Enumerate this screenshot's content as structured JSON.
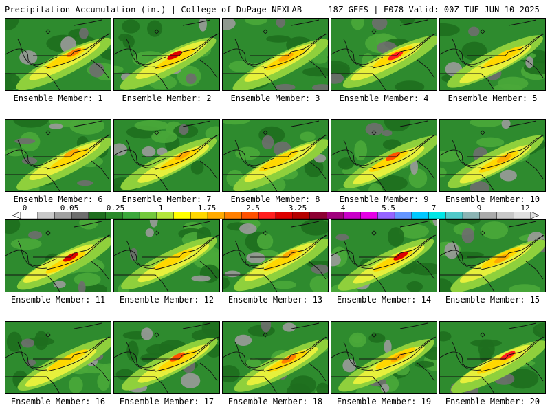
{
  "header": {
    "title_left": "Precipitation Accumulation (in.) | College of DuPage NEXLAB",
    "title_right": "18Z GEFS | F078 Valid: 00Z TUE JUN 10 2025"
  },
  "colorbar": {
    "labels": [
      "0",
      "0.05",
      "0.25",
      "1",
      "1.75",
      "2.5",
      "3.25",
      "4",
      "5.5",
      "7",
      "9",
      "12"
    ],
    "colors": [
      "#ffffff",
      "#c8c8c8",
      "#a0a0a0",
      "#6e6e6e",
      "#1e6e1e",
      "#2a8a2a",
      "#3ca83c",
      "#73c83c",
      "#b4e63c",
      "#ffff00",
      "#ffd700",
      "#ffaa00",
      "#ff7f00",
      "#ff5000",
      "#ff1e1e",
      "#dc0000",
      "#b40000",
      "#8c0032",
      "#a0007d",
      "#c800c8",
      "#e600e6",
      "#9664ff",
      "#6496ff",
      "#00c8ff",
      "#00e6e6",
      "#50c8c8",
      "#8cb4b4",
      "#aaaaaa",
      "#c8c8c8",
      "#e0e0e0"
    ]
  },
  "panels": [
    {
      "label": "Ensemble Member: 1",
      "max": "#ff7f00"
    },
    {
      "label": "Ensemble Member: 2",
      "max": "#dc0000"
    },
    {
      "label": "Ensemble Member: 3",
      "max": "#ffaa00"
    },
    {
      "label": "Ensemble Member: 4",
      "max": "#ff1e1e"
    },
    {
      "label": "Ensemble Member: 5",
      "max": "#ffd700"
    },
    {
      "label": "Ensemble Member: 6",
      "max": "#ffaa00"
    },
    {
      "label": "Ensemble Member: 7",
      "max": "#ffaa00"
    },
    {
      "label": "Ensemble Member: 8",
      "max": "#ffd700"
    },
    {
      "label": "Ensemble Member: 9",
      "max": "#ff5000"
    },
    {
      "label": "Ensemble Member: 10",
      "max": "#ffaa00"
    },
    {
      "label": "Ensemble Member: 11",
      "max": "#dc0000"
    },
    {
      "label": "Ensemble Member: 12",
      "max": "#ffd700"
    },
    {
      "label": "Ensemble Member: 13",
      "max": "#ffaa00"
    },
    {
      "label": "Ensemble Member: 14",
      "max": "#dc0000"
    },
    {
      "label": "Ensemble Member: 15",
      "max": "#ffaa00"
    },
    {
      "label": "Ensemble Member: 16",
      "max": "#ffd700"
    },
    {
      "label": "Ensemble Member: 17",
      "max": "#ff5000"
    },
    {
      "label": "Ensemble Member: 18",
      "max": "#ff7f00"
    },
    {
      "label": "Ensemble Member: 19",
      "max": "#ffaa00"
    },
    {
      "label": "Ensemble Member: 20",
      "max": "#ff1e1e"
    }
  ]
}
